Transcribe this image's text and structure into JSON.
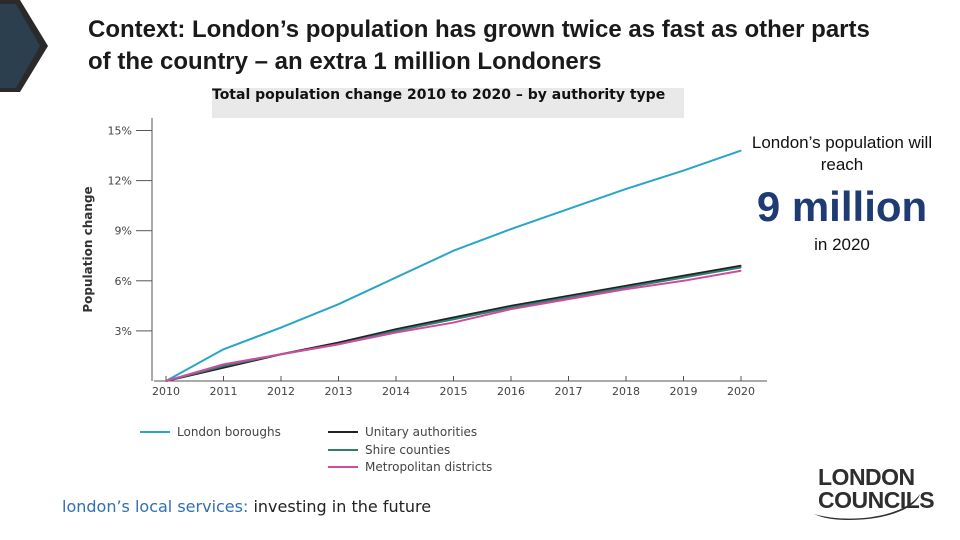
{
  "slide": {
    "title": "Context: London’s population has grown twice as fast as other parts of the country – an extra 1 million Londoners"
  },
  "callout": {
    "line1": "London’s population will reach",
    "highlight": "9 million",
    "line3": "in 2020"
  },
  "footer": {
    "tagline_part1": "london’s local services:",
    "tagline_part2": " investing in the future"
  },
  "logo": {
    "line1": "LONDON",
    "line2": "COUNCILS"
  },
  "colors": {
    "london": "#2aa5c9",
    "unitary": "#222222",
    "shire": "#2f7e6e",
    "metro": "#d14aa0",
    "axis": "#555555",
    "highlight": "#1f3b73"
  },
  "chart_data": {
    "type": "line",
    "title": "Total population change 2010 to 2020 – by authority type",
    "ylabel": "Population change",
    "xlabel": "",
    "x": [
      2010,
      2011,
      2012,
      2013,
      2014,
      2015,
      2016,
      2017,
      2018,
      2019,
      2020
    ],
    "x_tick_labels": [
      "2010",
      "2011",
      "2012",
      "2013",
      "2014",
      "2015",
      "2016",
      "2017",
      "2018",
      "2019",
      "2020"
    ],
    "y_ticks": [
      3,
      6,
      9,
      12,
      15
    ],
    "y_tick_labels": [
      "3%",
      "6%",
      "9%",
      "12%",
      "15%"
    ],
    "ylim": [
      0,
      16
    ],
    "grid": false,
    "legend_position": "bottom",
    "series": [
      {
        "name": "London boroughs",
        "color_key": "london",
        "values": [
          0,
          1.9,
          3.2,
          4.6,
          6.2,
          7.8,
          9.1,
          10.3,
          11.5,
          12.6,
          13.8
        ]
      },
      {
        "name": "Unitary authorities",
        "color_key": "unitary",
        "values": [
          0,
          0.8,
          1.6,
          2.3,
          3.1,
          3.8,
          4.5,
          5.1,
          5.7,
          6.3,
          6.9
        ]
      },
      {
        "name": "Shire counties",
        "color_key": "shire",
        "values": [
          0,
          0.9,
          1.6,
          2.2,
          3.0,
          3.7,
          4.4,
          5.0,
          5.6,
          6.2,
          6.8
        ]
      },
      {
        "name": "Metropolitan districts",
        "color_key": "metro",
        "values": [
          0,
          1.0,
          1.6,
          2.2,
          2.9,
          3.5,
          4.3,
          4.9,
          5.5,
          6.0,
          6.6
        ]
      }
    ]
  }
}
